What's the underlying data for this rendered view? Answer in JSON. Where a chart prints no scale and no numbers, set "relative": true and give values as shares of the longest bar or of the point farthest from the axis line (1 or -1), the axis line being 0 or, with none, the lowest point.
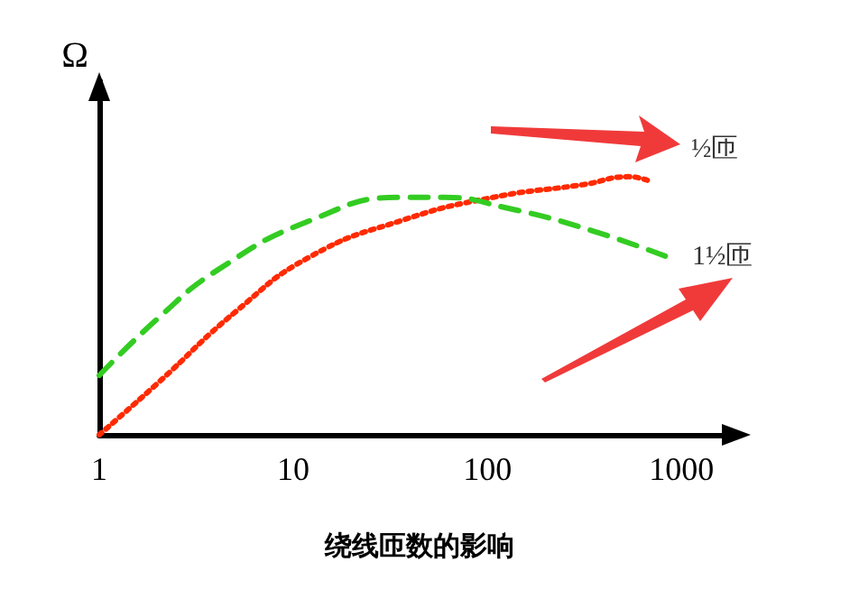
{
  "chart_data": {
    "type": "line",
    "xlabel": "绕线匝数的影响",
    "ylabel": "Ω",
    "log": "x",
    "relative": true,
    "xlim": [
      1,
      2000
    ],
    "xticks": [
      1,
      10,
      100,
      1000
    ],
    "grid": false,
    "legend": false,
    "marker": "none",
    "series": [
      {
        "name": "½匝",
        "color": "#ff2a00",
        "line_style": "dotted",
        "x": [
          1,
          2,
          5.1,
          12.2,
          36,
          107,
          316,
          535,
          700
        ],
        "values": [
          0,
          0.2,
          0.48,
          0.69,
          0.83,
          0.92,
          0.97,
          1,
          0.98
        ]
      },
      {
        "name": "1½匝",
        "color": "#33cc22",
        "line_style": "dashed",
        "x": [
          1,
          2,
          4.1,
          12.2,
          36,
          60,
          124,
          316,
          840
        ],
        "values": [
          0.23,
          0.45,
          0.64,
          0.83,
          0.92,
          0.92,
          0.88,
          0.8,
          0.69
        ]
      }
    ]
  }
}
